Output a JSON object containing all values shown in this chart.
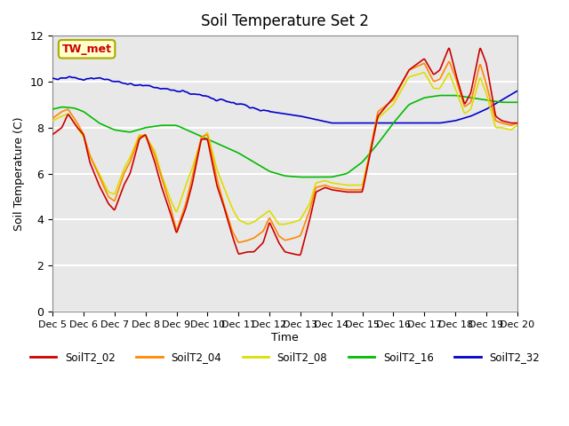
{
  "title": "Soil Temperature Set 2",
  "xlabel": "Time",
  "ylabel": "Soil Temperature (C)",
  "ylim": [
    0,
    12
  ],
  "xlim": [
    0,
    15
  ],
  "background_color": "#e8e8e8",
  "grid_color": "white",
  "annotation_text": "TW_met",
  "annotation_bg": "#ffffcc",
  "annotation_edge": "#aaaa00",
  "series_colors": {
    "SoilT2_02": "#cc0000",
    "SoilT2_04": "#ff8800",
    "SoilT2_08": "#dddd00",
    "SoilT2_16": "#00bb00",
    "SoilT2_32": "#0000cc"
  },
  "xtick_labels": [
    "Dec 5",
    "Dec 6",
    "Dec 7",
    "Dec 8",
    "Dec 9",
    "Dec 10",
    "Dec 11",
    "Dec 12",
    "Dec 13",
    "Dec 14",
    "Dec 15",
    "Dec 16",
    "Dec 17",
    "Dec 18",
    "Dec 19",
    "Dec 20"
  ],
  "ytick_labels": [
    "0",
    "2",
    "4",
    "6",
    "8",
    "10",
    "12"
  ]
}
